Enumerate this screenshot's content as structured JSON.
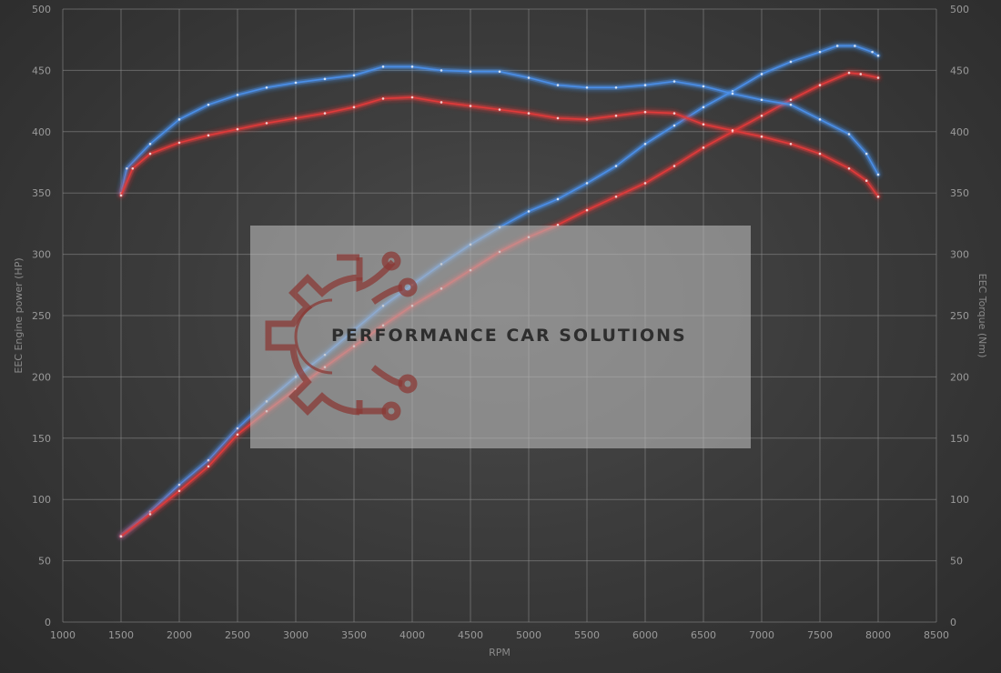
{
  "chart_data": {
    "type": "line",
    "xlabel": "RPM",
    "ylabel_left": "EEC Engine power (HP)",
    "ylabel_right": "EEC Torque (Nm)",
    "xlim": [
      1000,
      8500
    ],
    "ylim": [
      0,
      500
    ],
    "x_ticks": [
      1000,
      1500,
      2000,
      2500,
      3000,
      3500,
      4000,
      4500,
      5000,
      5500,
      6000,
      6500,
      7000,
      7500,
      8000,
      8500
    ],
    "y_ticks": [
      0,
      50,
      100,
      150,
      200,
      250,
      300,
      350,
      400,
      450,
      500
    ],
    "grid": true,
    "series": [
      {
        "role": "power-tuned",
        "color": "#4a8fe8",
        "axis": "left",
        "points": [
          [
            1500,
            70
          ],
          [
            1750,
            90
          ],
          [
            2000,
            112
          ],
          [
            2250,
            132
          ],
          [
            2500,
            158
          ],
          [
            2750,
            180
          ],
          [
            3000,
            200
          ],
          [
            3250,
            218
          ],
          [
            3500,
            238
          ],
          [
            3750,
            258
          ],
          [
            4000,
            275
          ],
          [
            4250,
            292
          ],
          [
            4500,
            308
          ],
          [
            4750,
            322
          ],
          [
            5000,
            335
          ],
          [
            5250,
            345
          ],
          [
            5500,
            358
          ],
          [
            5750,
            372
          ],
          [
            6000,
            390
          ],
          [
            6250,
            405
          ],
          [
            6500,
            420
          ],
          [
            6750,
            433
          ],
          [
            7000,
            447
          ],
          [
            7250,
            457
          ],
          [
            7500,
            465
          ],
          [
            7650,
            470
          ],
          [
            7800,
            470
          ],
          [
            7950,
            465
          ],
          [
            8000,
            462
          ]
        ]
      },
      {
        "role": "power-stock",
        "color": "#e03a3a",
        "axis": "left",
        "points": [
          [
            1500,
            70
          ],
          [
            1750,
            88
          ],
          [
            2000,
            107
          ],
          [
            2250,
            127
          ],
          [
            2500,
            153
          ],
          [
            2750,
            172
          ],
          [
            3000,
            190
          ],
          [
            3250,
            208
          ],
          [
            3500,
            225
          ],
          [
            3750,
            242
          ],
          [
            4000,
            258
          ],
          [
            4250,
            272
          ],
          [
            4500,
            287
          ],
          [
            4750,
            302
          ],
          [
            5000,
            314
          ],
          [
            5250,
            324
          ],
          [
            5500,
            336
          ],
          [
            5750,
            347
          ],
          [
            6000,
            358
          ],
          [
            6250,
            372
          ],
          [
            6500,
            387
          ],
          [
            6750,
            400
          ],
          [
            7000,
            413
          ],
          [
            7250,
            426
          ],
          [
            7500,
            438
          ],
          [
            7750,
            448
          ],
          [
            7850,
            447
          ],
          [
            8000,
            444
          ]
        ]
      },
      {
        "role": "torque-tuned",
        "color": "#4a8fe8",
        "axis": "right",
        "points": [
          [
            1500,
            350
          ],
          [
            1550,
            370
          ],
          [
            1750,
            390
          ],
          [
            2000,
            410
          ],
          [
            2250,
            422
          ],
          [
            2500,
            430
          ],
          [
            2750,
            436
          ],
          [
            3000,
            440
          ],
          [
            3250,
            443
          ],
          [
            3500,
            446
          ],
          [
            3750,
            453
          ],
          [
            4000,
            453
          ],
          [
            4250,
            450
          ],
          [
            4500,
            449
          ],
          [
            4750,
            449
          ],
          [
            5000,
            444
          ],
          [
            5250,
            438
          ],
          [
            5500,
            436
          ],
          [
            5750,
            436
          ],
          [
            6000,
            438
          ],
          [
            6250,
            441
          ],
          [
            6500,
            437
          ],
          [
            6750,
            431
          ],
          [
            7000,
            426
          ],
          [
            7250,
            422
          ],
          [
            7500,
            410
          ],
          [
            7750,
            398
          ],
          [
            7900,
            382
          ],
          [
            8000,
            365
          ]
        ]
      },
      {
        "role": "torque-stock",
        "color": "#e03a3a",
        "axis": "right",
        "points": [
          [
            1500,
            348
          ],
          [
            1600,
            370
          ],
          [
            1750,
            382
          ],
          [
            2000,
            391
          ],
          [
            2250,
            397
          ],
          [
            2500,
            402
          ],
          [
            2750,
            407
          ],
          [
            3000,
            411
          ],
          [
            3250,
            415
          ],
          [
            3500,
            420
          ],
          [
            3750,
            427
          ],
          [
            4000,
            428
          ],
          [
            4250,
            424
          ],
          [
            4500,
            421
          ],
          [
            4750,
            418
          ],
          [
            5000,
            415
          ],
          [
            5250,
            411
          ],
          [
            5500,
            410
          ],
          [
            5750,
            413
          ],
          [
            6000,
            416
          ],
          [
            6250,
            415
          ],
          [
            6500,
            406
          ],
          [
            6750,
            401
          ],
          [
            7000,
            396
          ],
          [
            7250,
            390
          ],
          [
            7500,
            382
          ],
          [
            7750,
            370
          ],
          [
            7900,
            360
          ],
          [
            8000,
            347
          ]
        ]
      }
    ]
  },
  "watermark": {
    "text": "PERFORMANCE CAR SOLUTIONS",
    "logo": "gear-circuit-logo"
  }
}
